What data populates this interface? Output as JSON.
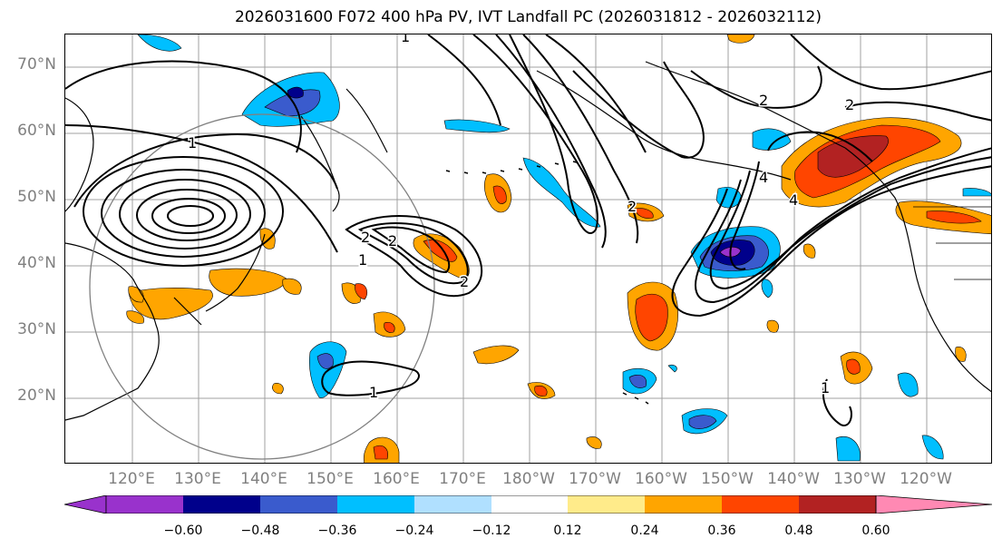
{
  "title": "2026031600 F072 400 hPa PV, IVT Landfall PC (2026031812 - 2026032112)",
  "lat_labels": [
    "70°N",
    "60°N",
    "50°N",
    "40°N",
    "30°N",
    "20°N"
  ],
  "lon_labels": [
    "120°E",
    "130°E",
    "140°E",
    "150°E",
    "160°E",
    "170°E",
    "180°W",
    "170°W",
    "160°W",
    "150°W",
    "140°W",
    "130°W",
    "120°W"
  ],
  "contour_labels": [
    "1",
    "1",
    "1",
    "1",
    "2",
    "2",
    "2",
    "2",
    "2",
    "2",
    "4",
    "4",
    "1"
  ],
  "colorbar": {
    "ticks": [
      "−0.60",
      "−0.48",
      "−0.36",
      "−0.24",
      "−0.12",
      "0.12",
      "0.24",
      "0.36",
      "0.48",
      "0.60"
    ],
    "colors": [
      "#9932CC",
      "#00008B",
      "#3A5BCD",
      "#00BFFF",
      "#B0E0FF",
      "#FFFFFF",
      "#FFEB8A",
      "#FFA500",
      "#FF4500",
      "#B22222",
      "#FF89B3"
    ]
  }
}
